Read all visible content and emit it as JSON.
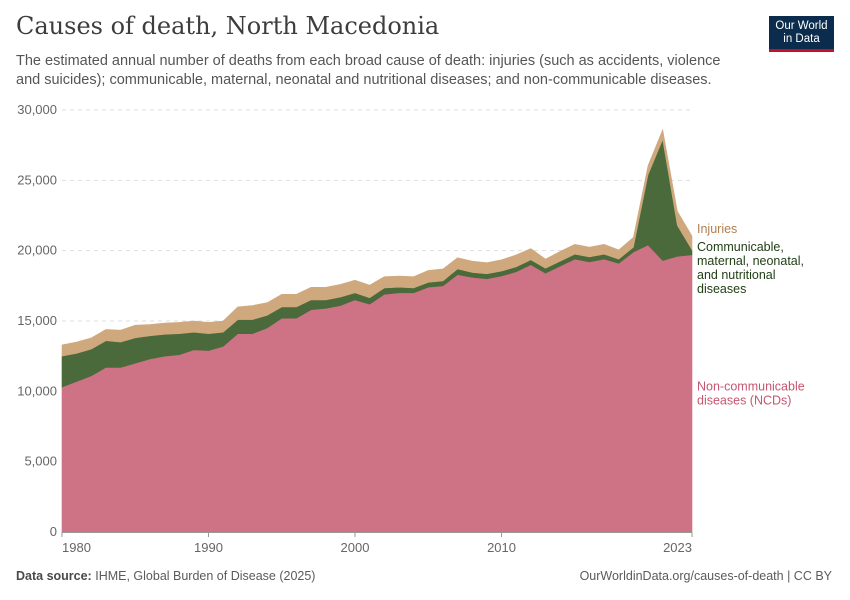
{
  "header": {
    "title": "Causes of death, North Macedonia",
    "subtitle": "The estimated annual number of deaths from each broad cause of death: injuries (such as accidents, violence and suicides); communicable, maternal, neonatal and nutritional diseases; and non-communicable diseases."
  },
  "logo": {
    "line1": "Our World",
    "line2": "in Data"
  },
  "footer": {
    "source_label": "Data source:",
    "source_text": "IHME, Global Burden of Disease (2025)",
    "url": "OurWorldinData.org/causes-of-death | CC BY"
  },
  "colors": {
    "ncd": "#cd7385",
    "communicable": "#4a6a3b",
    "injuries": "#cfa97d",
    "grid": "#dddddd"
  },
  "chart_data": {
    "type": "area",
    "stacked": true,
    "title": "Causes of death, North Macedonia",
    "xlabel": "",
    "ylabel": "",
    "xlim": [
      1980,
      2023
    ],
    "ylim": [
      0,
      30000
    ],
    "x_ticks": [
      "1980",
      "1990",
      "2000",
      "2010",
      "2023"
    ],
    "y_ticks": [
      "0",
      "5,000",
      "10,000",
      "15,000",
      "20,000",
      "25,000",
      "30,000"
    ],
    "x": [
      1980,
      1981,
      1982,
      1983,
      1984,
      1985,
      1986,
      1987,
      1988,
      1989,
      1990,
      1991,
      1992,
      1993,
      1994,
      1995,
      1996,
      1997,
      1998,
      1999,
      2000,
      2001,
      2002,
      2003,
      2004,
      2005,
      2006,
      2007,
      2008,
      2009,
      2010,
      2011,
      2012,
      2013,
      2014,
      2015,
      2016,
      2017,
      2018,
      2019,
      2020,
      2021,
      2022,
      2023
    ],
    "series": [
      {
        "name": "Non-communicable diseases (NCDs)",
        "label_lines": [
          "Non-communicable",
          "diseases (NCDs)"
        ],
        "values": [
          10300,
          10700,
          11100,
          11700,
          11700,
          12000,
          12300,
          12500,
          12600,
          12950,
          12900,
          13200,
          14100,
          14100,
          14500,
          15200,
          15200,
          15800,
          15900,
          16100,
          16500,
          16200,
          16900,
          17000,
          17000,
          17400,
          17500,
          18300,
          18100,
          18000,
          18200,
          18500,
          19000,
          18400,
          18900,
          19400,
          19200,
          19400,
          19100,
          19900,
          20400,
          19300,
          19600,
          19700
        ]
      },
      {
        "name": "Communicable, maternal, neonatal, and nutritional diseases",
        "label_lines": [
          "Communicable,",
          "maternal, neonatal,",
          "and nutritional",
          "diseases"
        ],
        "values": [
          2200,
          2000,
          1900,
          1900,
          1800,
          1800,
          1650,
          1550,
          1500,
          1250,
          1200,
          1000,
          1000,
          1000,
          900,
          800,
          800,
          700,
          600,
          600,
          500,
          450,
          450,
          400,
          350,
          350,
          350,
          400,
          350,
          350,
          350,
          350,
          350,
          350,
          350,
          350,
          350,
          350,
          300,
          350,
          5000,
          8600,
          2200,
          350
        ]
      },
      {
        "name": "Injuries",
        "label_lines": [
          "Injuries"
        ],
        "values": [
          800,
          800,
          800,
          800,
          850,
          900,
          800,
          800,
          800,
          800,
          800,
          800,
          900,
          1000,
          900,
          900,
          900,
          900,
          900,
          900,
          900,
          900,
          800,
          800,
          800,
          850,
          850,
          800,
          800,
          800,
          800,
          850,
          800,
          650,
          700,
          700,
          700,
          700,
          650,
          700,
          650,
          700,
          1000,
          1000
        ]
      }
    ]
  }
}
